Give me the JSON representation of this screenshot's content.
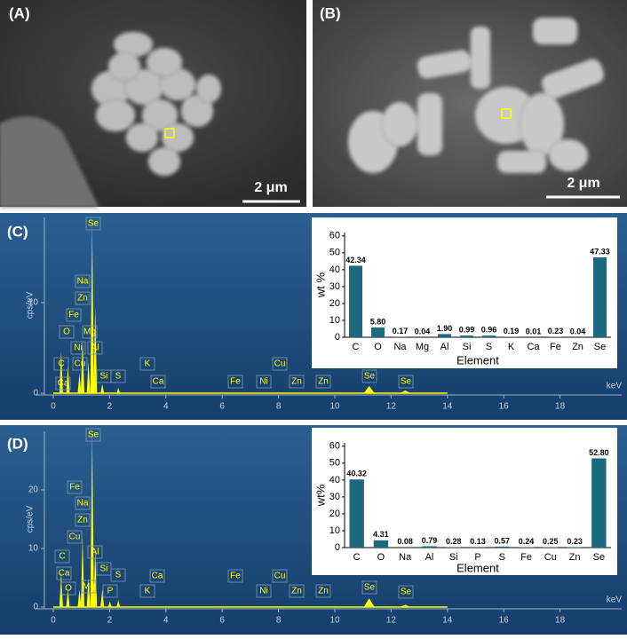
{
  "images": [
    {
      "panel": "(A)",
      "scale_bar": "2 μm"
    },
    {
      "panel": "(B)",
      "scale_bar": "2 μm"
    }
  ],
  "chart_data": [
    {
      "type": "spectrum",
      "panel": "(C)",
      "xlabel": "keV",
      "ylabel": "cps/eV",
      "color": "#ffff00",
      "x": [
        0.28,
        0.52,
        0.93,
        1.04,
        1.25,
        1.38,
        1.49,
        1.74,
        2.31,
        11.22,
        12.5
      ],
      "values": [
        4.6,
        3,
        2.2,
        6,
        3.5,
        18.8,
        9.5,
        1,
        0.6,
        0.8,
        0.3
      ],
      "xlim": [
        0,
        20
      ],
      "ylim": [
        0,
        19.4
      ],
      "xticks": [
        0,
        2,
        4,
        6,
        8,
        10,
        12,
        14,
        16,
        18
      ],
      "yticks": [
        0,
        10
      ],
      "annotations": [
        "Se",
        "Na",
        "Zn",
        "Fe",
        "O",
        "Mg",
        "Ni",
        "Al",
        "C",
        "Cu",
        "Ca",
        "Si",
        "S",
        "K",
        "Ca",
        "Fe",
        "Ni",
        "Cu",
        "Zn",
        "Zn",
        "Se",
        "Se"
      ]
    },
    {
      "type": "bar",
      "xlabel": "Element",
      "ylabel": "wt %",
      "color": "#1d6a80",
      "categories": [
        "C",
        "O",
        "Na",
        "Mg",
        "Al",
        "Si",
        "S",
        "K",
        "Ca",
        "Fe",
        "Zn",
        "Se"
      ],
      "values": [
        42.34,
        5.8,
        0.17,
        0.04,
        1.9,
        0.99,
        0.96,
        0.19,
        0.01,
        0.23,
        0.04,
        47.33
      ],
      "value_labels": [
        "42.34",
        "5.80",
        "0.17",
        "0.04",
        "1.90",
        "0.99",
        "0.96",
        "0.19",
        "0.01",
        "0.23",
        "0.04",
        "47.33"
      ],
      "ylim": [
        0,
        62
      ],
      "yticks": [
        0,
        10,
        20,
        30,
        40,
        50,
        60
      ]
    },
    {
      "type": "spectrum",
      "panel": "(D)",
      "xlabel": "keV",
      "ylabel": "cps/eV",
      "color": "#ffff00",
      "x": [
        0.28,
        0.52,
        0.93,
        1.04,
        1.25,
        1.38,
        1.49,
        1.74,
        2.01,
        2.31,
        11.22,
        12.5
      ],
      "values": [
        6,
        3,
        3,
        12,
        5,
        30,
        10,
        3,
        1,
        1.2,
        1.5,
        0.4
      ],
      "xlim": [
        0,
        20
      ],
      "ylim": [
        0,
        30
      ],
      "xticks": [
        0,
        2,
        4,
        6,
        8,
        10,
        12,
        14,
        16,
        18
      ],
      "yticks": [
        0,
        10,
        20
      ],
      "annotations": [
        "Se",
        "Fe",
        "Na",
        "Zn",
        "Cu",
        "Al",
        "C",
        "Si",
        "Ca",
        "S",
        "Mg",
        "O",
        "P",
        "K",
        "Ca",
        "Fe",
        "Ni",
        "Cu",
        "Zn",
        "Zn",
        "Se",
        "Se"
      ]
    },
    {
      "type": "bar",
      "xlabel": "Element",
      "ylabel": "wt%",
      "color": "#1d6a80",
      "categories": [
        "C",
        "O",
        "Na",
        "Al",
        "Si",
        "P",
        "S",
        "Fe",
        "Cu",
        "Zn",
        "Se"
      ],
      "values": [
        40.32,
        4.31,
        0.08,
        0.79,
        0.28,
        0.13,
        0.57,
        0.24,
        0.25,
        0.23,
        52.8
      ],
      "value_labels": [
        "40.32",
        "4.31",
        "0.08",
        "0.79",
        "0.28",
        "0.13",
        "0.57",
        "0.24",
        "0.25",
        "0.23",
        "52.80"
      ],
      "ylim": [
        0,
        62
      ],
      "yticks": [
        0,
        10,
        20,
        30,
        40,
        50,
        60
      ]
    }
  ]
}
